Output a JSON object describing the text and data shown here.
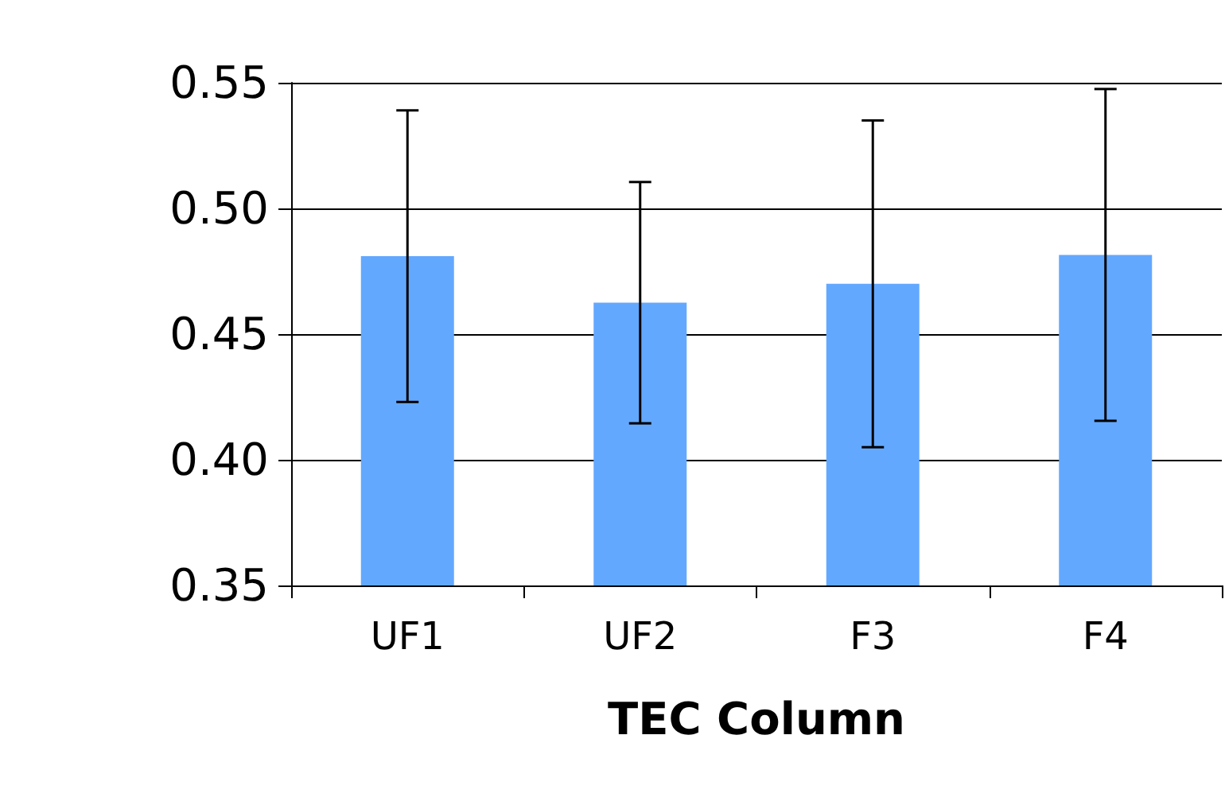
{
  "chart_data": {
    "type": "bar",
    "xlabel": "TEC Column",
    "categories": [
      "UF1",
      "UF2",
      "F3",
      "F4"
    ],
    "values": [
      0.481,
      0.4625,
      0.47,
      0.4815
    ],
    "errors": [
      0.058,
      0.048,
      0.065,
      0.066
    ],
    "color": "#63a8ff",
    "ylim": [
      0.35,
      0.55
    ],
    "yticks": [
      0.35,
      {
        "value": 0.4,
        "label": "0.40"
      },
      0.45,
      {
        "value": 0.5,
        "label": "0.50"
      },
      0.55
    ],
    "grid": "y"
  }
}
